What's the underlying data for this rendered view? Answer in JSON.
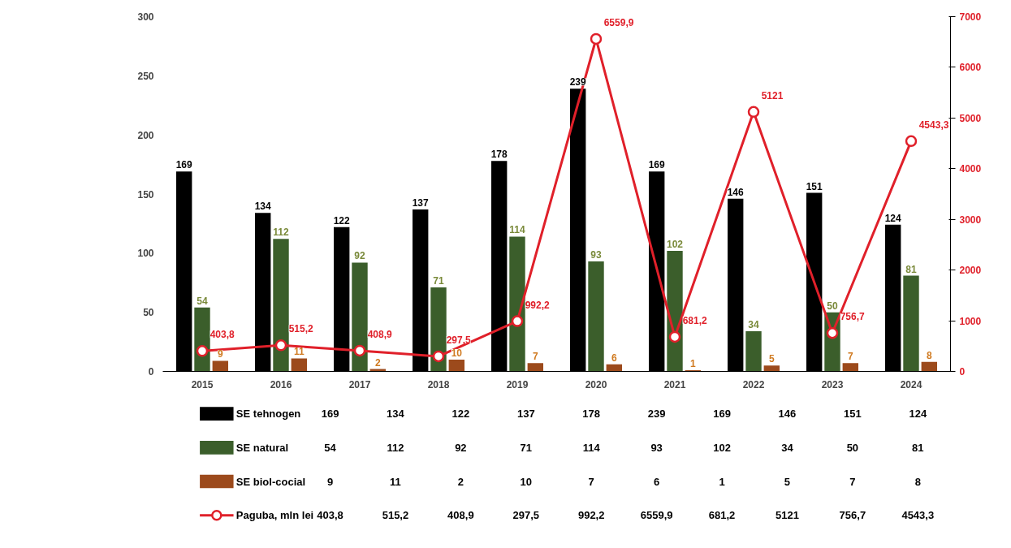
{
  "chart_data": {
    "type": "bar",
    "categories": [
      "2015",
      "2016",
      "2017",
      "2018",
      "2019",
      "2020",
      "2021",
      "2022",
      "2023",
      "2024"
    ],
    "ylim": [
      0,
      300
    ],
    "yticks": [
      0,
      50,
      100,
      150,
      200,
      250,
      300
    ],
    "y2lim": [
      0,
      7000
    ],
    "y2ticks": [
      0,
      1000,
      2000,
      3000,
      4000,
      5000,
      6000,
      7000
    ],
    "grid": false,
    "legend": "bottom",
    "series": [
      {
        "name": "SE tehnogen",
        "color": "#000000",
        "values": [
          169,
          134,
          122,
          137,
          178,
          239,
          169,
          146,
          151,
          124
        ],
        "value_labels": [
          "169",
          "134",
          "122",
          "137",
          "178",
          "239",
          "169",
          "146",
          "151",
          "124"
        ]
      },
      {
        "name": "SE natural",
        "color": "#3b5e2b",
        "values": [
          54,
          112,
          92,
          71,
          114,
          93,
          102,
          34,
          50,
          81
        ],
        "value_labels": [
          "54",
          "112",
          "92",
          "71",
          "114",
          "93",
          "102",
          "34",
          "50",
          "81"
        ]
      },
      {
        "name": "SE biol-cocial",
        "color": "#9c4a1c",
        "values": [
          9,
          11,
          2,
          10,
          7,
          6,
          1,
          5,
          7,
          8
        ],
        "value_labels": [
          "9",
          "11",
          "2",
          "10",
          "7",
          "6",
          "1",
          "5",
          "7",
          "8"
        ]
      },
      {
        "name": "Paguba, mln lei",
        "type": "line",
        "axis": "y2",
        "marker": "circle",
        "color": "#e0202a",
        "values": [
          403.8,
          515.2,
          408.9,
          297.5,
          992.2,
          6559.9,
          681.2,
          5121,
          756.7,
          4543.3
        ],
        "value_labels": [
          "403,8",
          "515,2",
          "408,9",
          "297,5",
          "992,2",
          "6559,9",
          "681,2",
          "5121",
          "756,7",
          "4543,3"
        ]
      }
    ]
  }
}
